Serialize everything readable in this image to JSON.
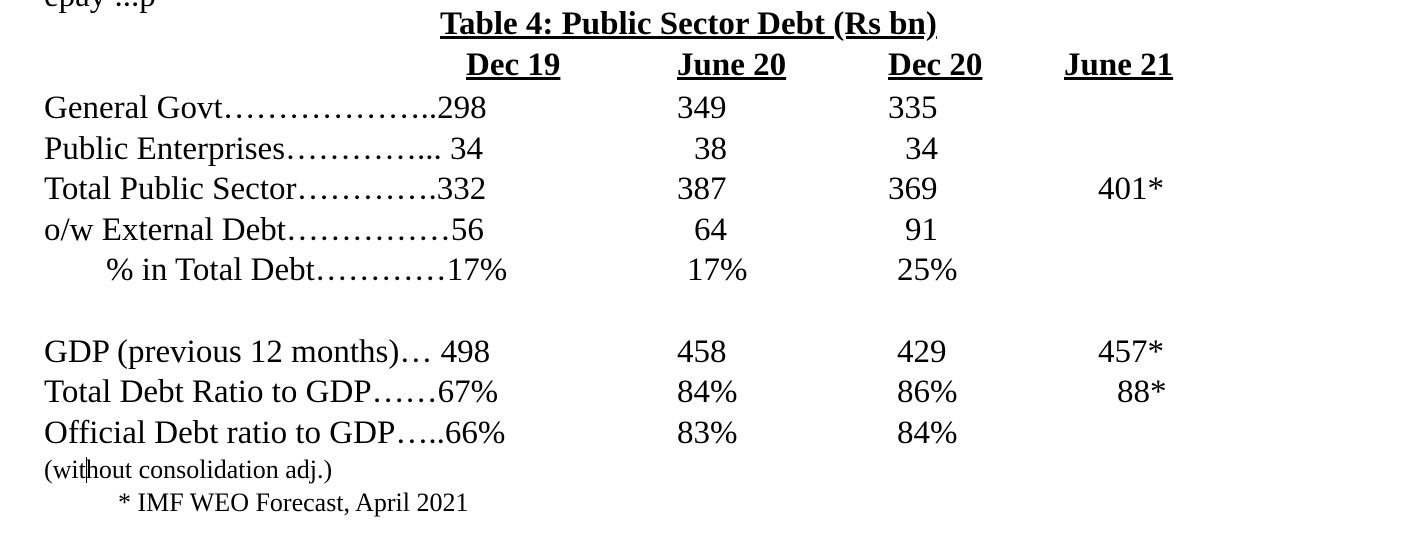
{
  "title": "Table 4: Public Sector Debt (Rs bn)",
  "top_fragment": "epay  ...p",
  "headers": [
    "Dec 19",
    "June 20",
    "Dec 20",
    "June 21"
  ],
  "rows": [
    {
      "label": "General Govt………………..298",
      "c2": "349",
      "c3": "335",
      "c4": ""
    },
    {
      "label": "Public Enterprises…………... 34",
      "c2": "38",
      "c3": "34",
      "c4": ""
    },
    {
      "label": "Total Public Sector………….332",
      "c2": "387",
      "c3": "369",
      "c4": "401*"
    },
    {
      "label": "o/w External Debt……………56",
      "c2": "64",
      "c3": "91",
      "c4": ""
    },
    {
      "label": "% in Total Debt…………17%",
      "c2": "17%",
      "c3": "25%",
      "c4": ""
    },
    {
      "label": "GDP (previous 12 months)… 498",
      "c2": "458",
      "c3": "429",
      "c4": "457*"
    },
    {
      "label": "Total Debt Ratio to GDP……67%",
      "c2": "84%",
      "c3": "86%",
      "c4": "88*"
    },
    {
      "label": "Official Debt ratio to GDP…..66%",
      "c2": "83%",
      "c3": "84%",
      "c4": ""
    }
  ],
  "note_consolidation_a": "(wit",
  "note_consolidation_b": "hout consolidation adj.)",
  "footnote": "* IMF WEO Forecast, April 2021"
}
